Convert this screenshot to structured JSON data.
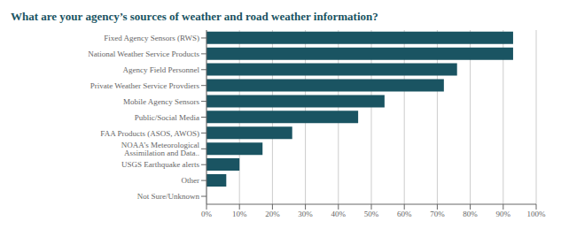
{
  "chart_data": {
    "type": "bar",
    "orientation": "horizontal",
    "title": "What are your agency’s sources of weather and road weather information?",
    "categories": [
      "Fixed Agency Sensors (RWS)",
      "National Weather Service Products",
      "Agency Field Personnel",
      "Private Weather Service Provdiers",
      "Mobile Agency Sensors",
      "Public/Social Media",
      "FAA Products (ASOS, AWOS)",
      "NOAA’s Meteorological Assimilation and Data..",
      "USGS Earthquake alerts",
      "Other",
      "Not Sure/Unknown"
    ],
    "values": [
      0.93,
      0.93,
      0.76,
      0.72,
      0.54,
      0.46,
      0.26,
      0.17,
      0.1,
      0.06,
      0.0
    ],
    "color": "#1a5462",
    "xlim": [
      0,
      1.0
    ],
    "xticks": [
      {
        "value": 0.0,
        "label": "0%"
      },
      {
        "value": 0.1,
        "label": "10%"
      },
      {
        "value": 0.2,
        "label": "20%"
      },
      {
        "value": 0.3,
        "label": "30%"
      },
      {
        "value": 0.4,
        "label": "40%"
      },
      {
        "value": 0.5,
        "label": "50%"
      },
      {
        "value": 0.6,
        "label": "60%"
      },
      {
        "value": 0.7,
        "label": "70%"
      },
      {
        "value": 0.8,
        "label": "80%"
      },
      {
        "value": 0.9,
        "label": "90%"
      },
      {
        "value": 1.0,
        "label": "100%"
      }
    ],
    "grid": true
  }
}
